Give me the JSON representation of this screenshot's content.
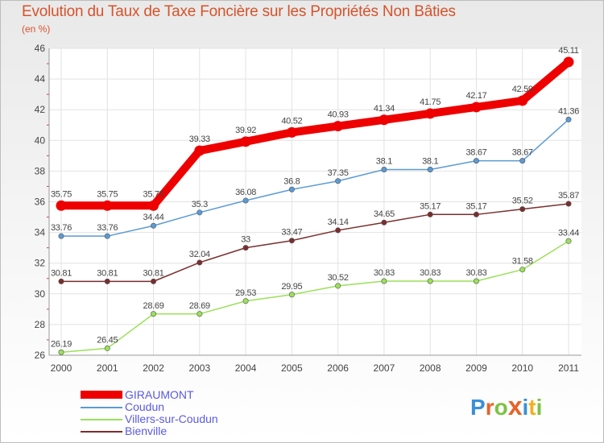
{
  "header": {
    "title": "Evolution du Taux de Taxe Foncière sur les Propriétés Non Bâties",
    "unit": "(en %)"
  },
  "logo": {
    "letters": [
      "P",
      "r",
      "o",
      "x",
      "i",
      "t",
      "i"
    ],
    "colors": [
      "#3b8fd8",
      "#e8632a",
      "#7cc242",
      "#e8632a",
      "#3b8fd8",
      "#f2b01e",
      "#7cc242"
    ]
  },
  "chart_data": {
    "type": "line",
    "title": "Evolution du Taux de Taxe Foncière sur les Propriétés Non Bâties",
    "ylabel": "(en %)",
    "x": [
      "2000",
      "2001",
      "2002",
      "2003",
      "2004",
      "2005",
      "2006",
      "2007",
      "2008",
      "2009",
      "2010",
      "2011"
    ],
    "ylim": [
      26,
      46
    ],
    "yticks": [
      "26",
      "28",
      "30",
      "32",
      "34",
      "36",
      "38",
      "40",
      "42",
      "44",
      "46"
    ],
    "grid": true,
    "legend_position": "bottom-left",
    "series": [
      {
        "name": "GIRAUMONT",
        "color": "#ee0000",
        "width": 10,
        "values": [
          35.75,
          35.75,
          35.75,
          39.33,
          39.92,
          40.52,
          40.93,
          41.34,
          41.75,
          42.17,
          42.59,
          45.11
        ],
        "labels": [
          "35.75",
          "35.75",
          "35.75",
          "39.33",
          "39.92",
          "40.52",
          "40.93",
          "41.34",
          "41.75",
          "42.17",
          "42.59",
          "45.11"
        ]
      },
      {
        "name": "Coudun",
        "color": "#5b9bd5",
        "width": 1.5,
        "values": [
          33.76,
          33.76,
          34.44,
          35.3,
          36.08,
          36.8,
          37.35,
          38.1,
          38.1,
          38.67,
          38.67,
          41.36
        ],
        "labels": [
          "33.76",
          "33.76",
          "34.44",
          "35.3",
          "36.08",
          "36.8",
          "37.35",
          "38.1",
          "38.1",
          "38.67",
          "38.67",
          "41.36"
        ]
      },
      {
        "name": "Villers-sur-Coudun",
        "color": "#9be05a",
        "width": 1.5,
        "values": [
          26.19,
          26.45,
          28.69,
          28.69,
          29.53,
          29.95,
          30.52,
          30.83,
          30.83,
          30.83,
          31.58,
          33.44
        ],
        "labels": [
          "26.19",
          "26.45",
          "28.69",
          "28.69",
          "29.53",
          "29.95",
          "30.52",
          "30.83",
          "30.83",
          "30.83",
          "31.58",
          "33.44"
        ]
      },
      {
        "name": "Bienville",
        "color": "#7a2e2e",
        "width": 1.5,
        "values": [
          30.81,
          30.81,
          30.81,
          32.04,
          33,
          33.47,
          34.14,
          34.65,
          35.17,
          35.17,
          35.52,
          35.87
        ],
        "labels": [
          "30.81",
          "30.81",
          "30.81",
          "32.04",
          "33",
          "33.47",
          "34.14",
          "34.65",
          "35.17",
          "35.17",
          "35.52",
          "35.87"
        ]
      }
    ]
  }
}
